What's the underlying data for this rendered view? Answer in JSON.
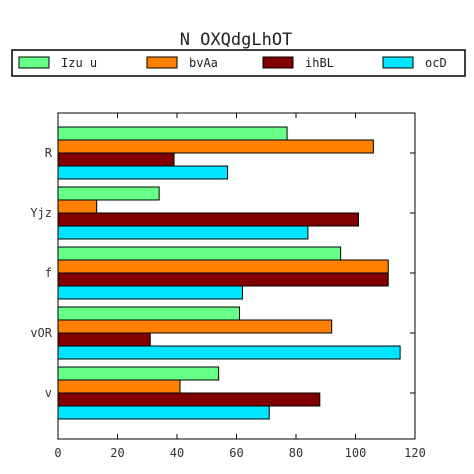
{
  "chart_data": {
    "type": "bar",
    "orientation": "horizontal",
    "title": "N OXQdgLhOT",
    "xlabel": "",
    "ylabel": "",
    "categories": [
      "R",
      "Yjz",
      "f",
      "vOR",
      "v"
    ],
    "series": [
      {
        "name": "Izu u",
        "color": "#66ff88",
        "values": [
          77,
          34,
          95,
          61,
          54
        ]
      },
      {
        "name": "bvAa",
        "color": "#ff7f00",
        "values": [
          106,
          13,
          111,
          92,
          41
        ]
      },
      {
        "name": "ihBL",
        "color": "#800000",
        "values": [
          39,
          101,
          111,
          31,
          88
        ]
      },
      {
        "name": "ocD",
        "color": "#00e5ff",
        "values": [
          57,
          84,
          62,
          115,
          71
        ]
      }
    ],
    "xlim": [
      0,
      120
    ],
    "xticks": [
      0,
      20,
      40,
      60,
      80,
      100,
      120
    ],
    "grid": false,
    "legend_position": "top"
  }
}
